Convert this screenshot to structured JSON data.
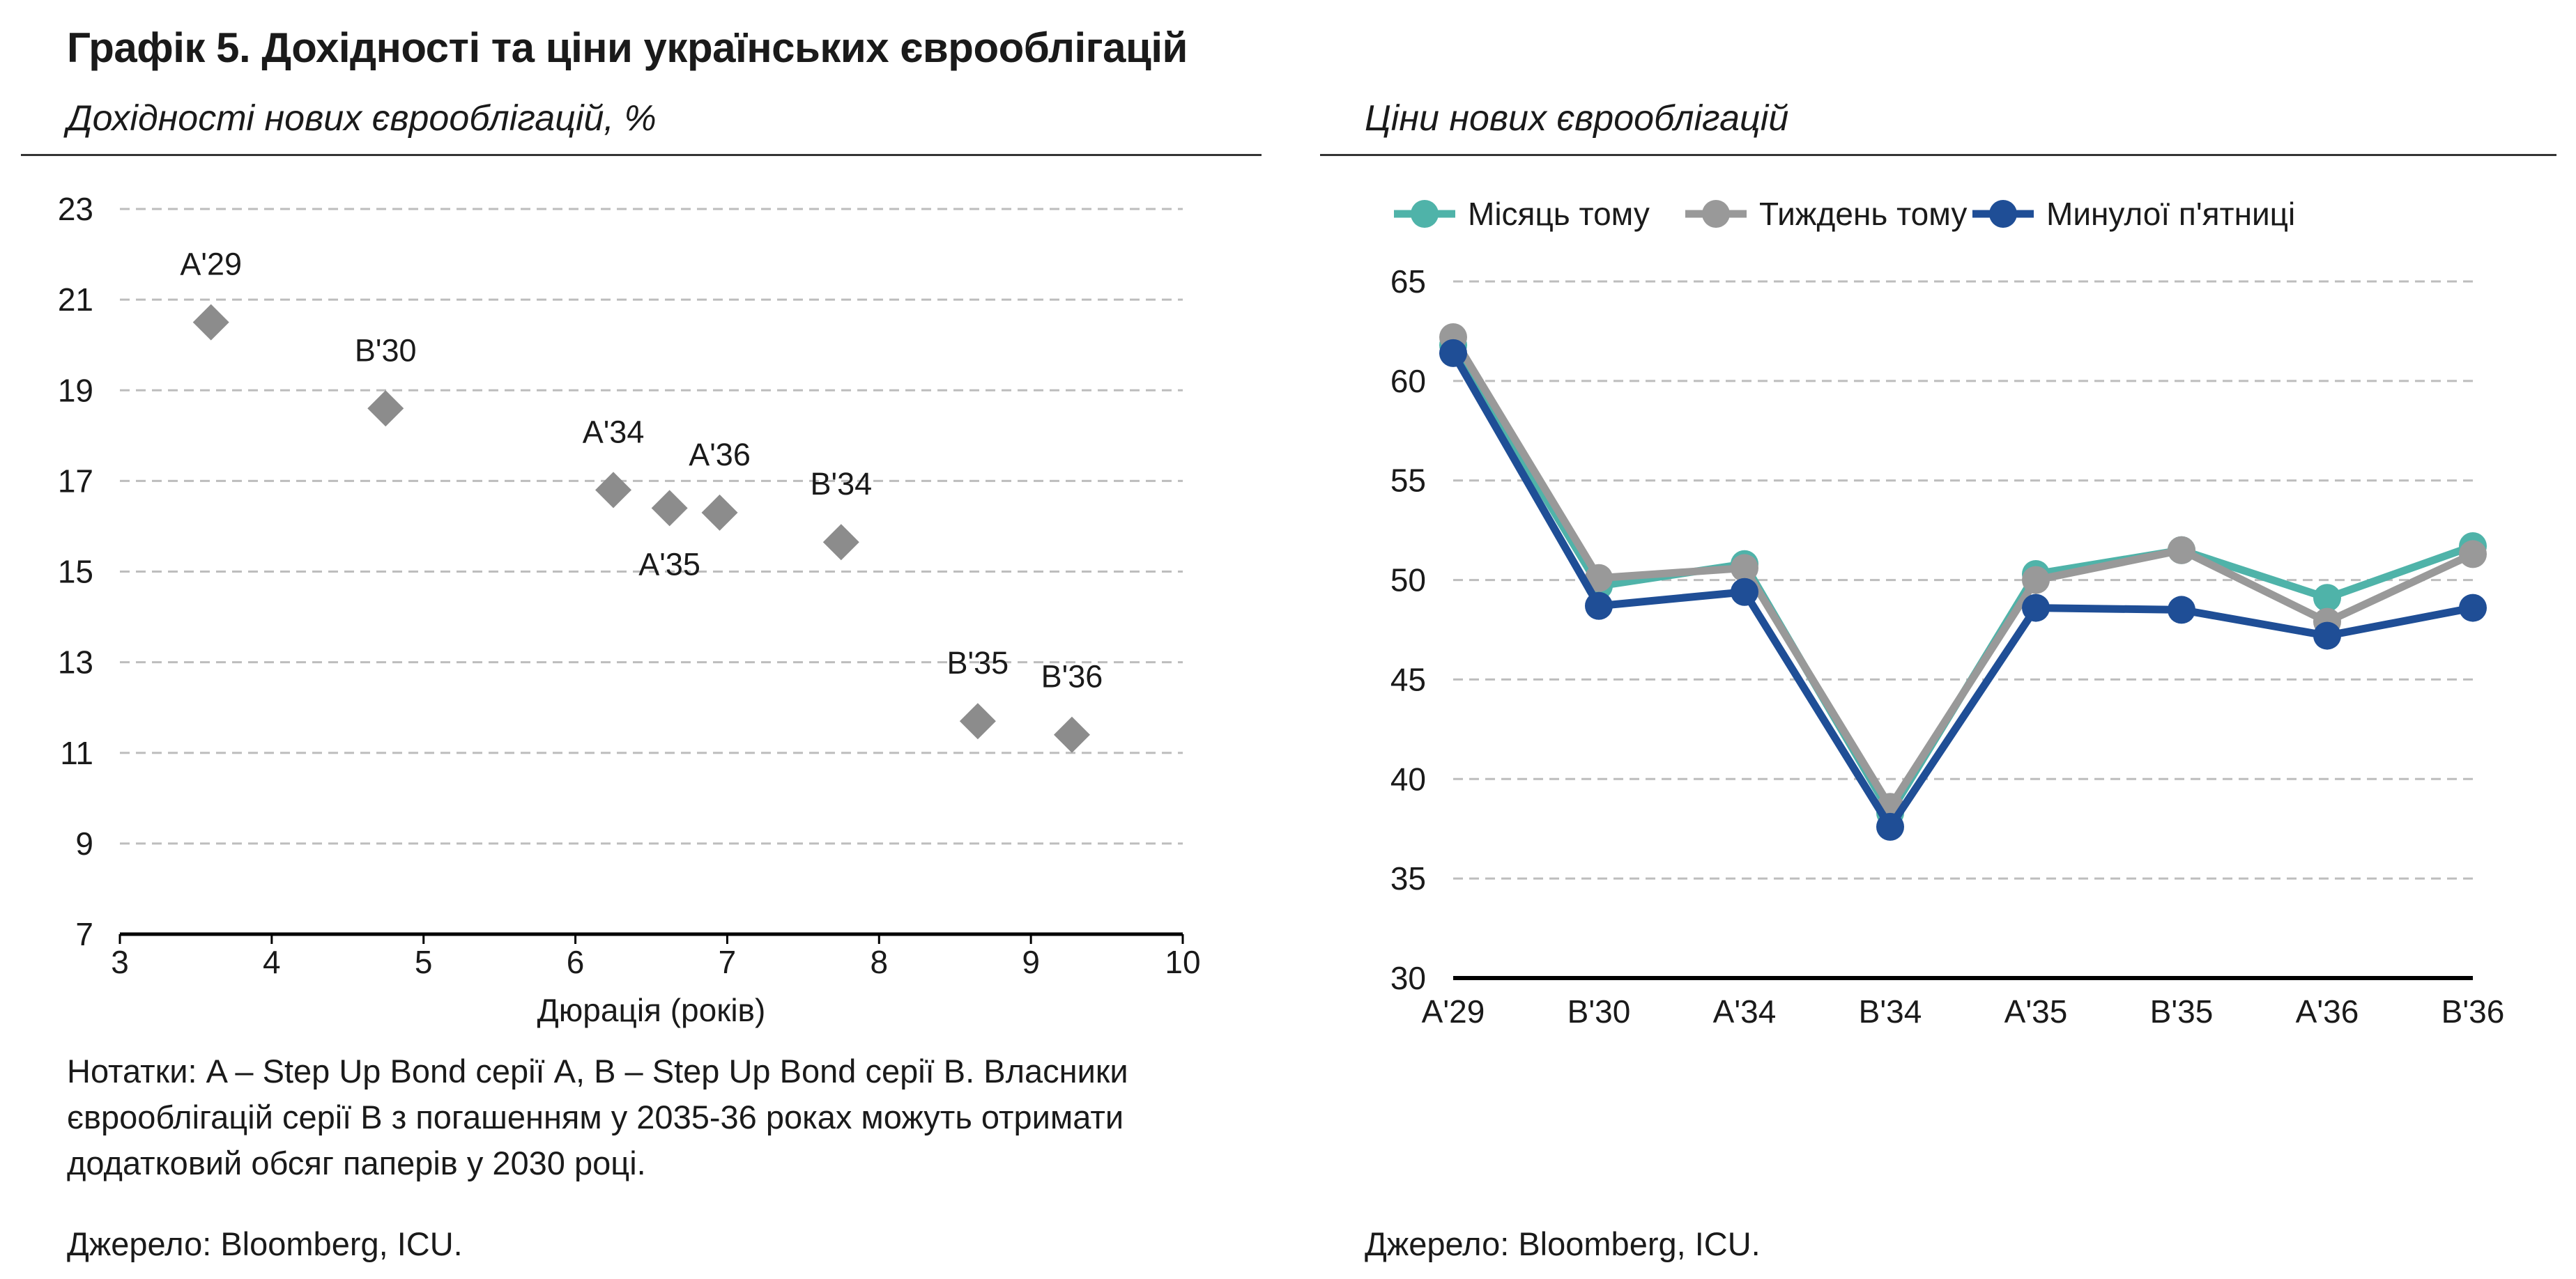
{
  "figure_title": "Графік 5. Дохідності та ціни українських єврооблігацій",
  "left_panel": {
    "subtitle": "Дохідності нових єврооблігацій, %",
    "note": "Нотатки: A – Step Up Bond серії A, B – Step Up Bond серії B. Власники єврооблігацій серії B з погашенням у 2035-36 роках можуть отримати додатковий обсяг паперів у 2030 році.",
    "source": "Джерело: Bloomberg, ICU."
  },
  "right_panel": {
    "subtitle": "Ціни нових єврооблігацій",
    "source": "Джерело: Bloomberg, ICU."
  },
  "colors": {
    "scatter_marker": "#8c8c8c",
    "month_ago": "#4fb3a9",
    "week_ago": "#999999",
    "last_friday": "#1f4e96",
    "grid": "#bdbdbd",
    "axis": "#000000"
  },
  "chart_data": [
    {
      "type": "scatter",
      "title": "Дохідності нових єврооблігацій, %",
      "xlabel": "Дюрація (років)",
      "ylabel": "",
      "xlim": [
        3,
        10
      ],
      "ylim": [
        7,
        23
      ],
      "xticks": [
        3,
        4,
        5,
        6,
        7,
        8,
        9,
        10
      ],
      "yticks": [
        7,
        9,
        11,
        13,
        15,
        17,
        19,
        21,
        23
      ],
      "grid": "horizontal dashed",
      "points": [
        {
          "label": "A'29",
          "x": 3.6,
          "y": 20.5,
          "label_pos": "above"
        },
        {
          "label": "B'30",
          "x": 4.75,
          "y": 18.6,
          "label_pos": "above"
        },
        {
          "label": "A'34",
          "x": 6.25,
          "y": 16.8,
          "label_pos": "above"
        },
        {
          "label": "A'35",
          "x": 6.62,
          "y": 16.4,
          "label_pos": "below"
        },
        {
          "label": "A'36",
          "x": 6.95,
          "y": 16.3,
          "label_pos": "above"
        },
        {
          "label": "B'34",
          "x": 7.75,
          "y": 15.65,
          "label_pos": "above"
        },
        {
          "label": "B'35",
          "x": 8.65,
          "y": 11.7,
          "label_pos": "above"
        },
        {
          "label": "B'36",
          "x": 9.27,
          "y": 11.4,
          "label_pos": "above"
        }
      ]
    },
    {
      "type": "line",
      "title": "Ціни нових єврооблігацій",
      "categories": [
        "A'29",
        "B'30",
        "A'34",
        "B'34",
        "A'35",
        "B'35",
        "A'36",
        "B'36"
      ],
      "ylim": [
        30,
        65
      ],
      "yticks": [
        30,
        35,
        40,
        45,
        50,
        55,
        60,
        65
      ],
      "grid": "horizontal dashed",
      "legend": "top-left",
      "series": [
        {
          "name": "Місяць тому",
          "color_key": "month_ago",
          "values": [
            61.8,
            49.7,
            50.8,
            38.3,
            50.3,
            51.5,
            49.1,
            51.7
          ]
        },
        {
          "name": "Тиждень тому",
          "color_key": "week_ago",
          "values": [
            62.2,
            50.1,
            50.6,
            38.6,
            50.0,
            51.5,
            47.9,
            51.3
          ]
        },
        {
          "name": "Минулої п'ятниці",
          "color_key": "last_friday",
          "values": [
            61.4,
            48.7,
            49.4,
            37.6,
            48.6,
            48.5,
            47.2,
            48.6
          ]
        }
      ]
    }
  ]
}
